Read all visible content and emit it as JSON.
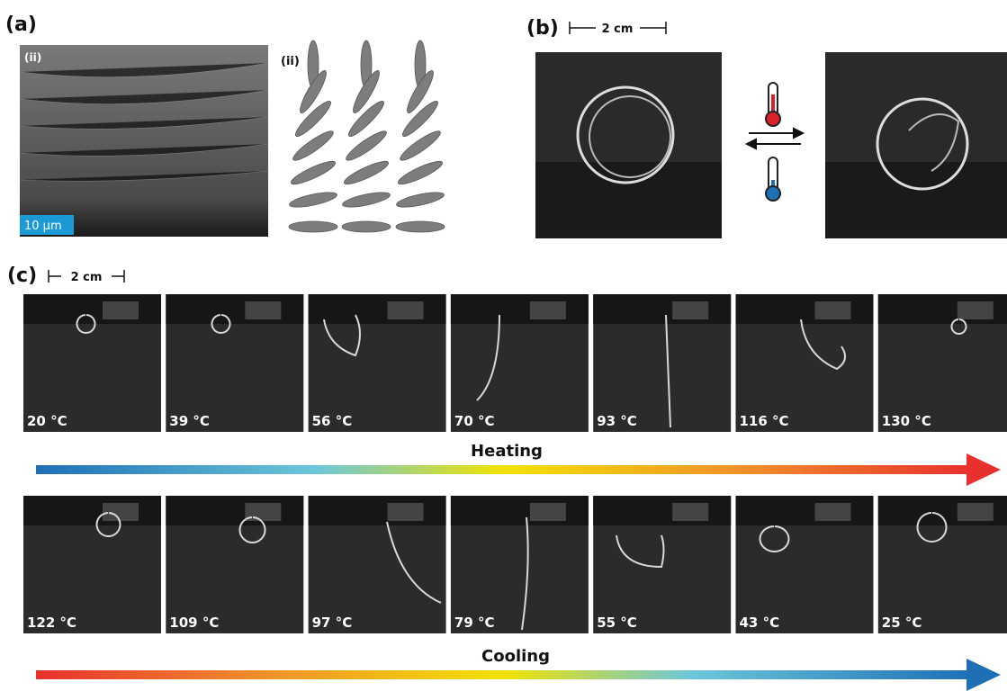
{
  "panel_a": {
    "label": "(a)",
    "sem_label": "(ii)",
    "scale_bar": "10 μm",
    "schematic_label": "(ii)"
  },
  "panel_b": {
    "label": "(b)",
    "scale_bar": "2 cm"
  },
  "panel_c": {
    "label": "(c)",
    "scale_bar": "2 cm",
    "heating": {
      "label": "Heating",
      "frames": [
        "20 °C",
        "39 °C",
        "56 °C",
        "70 °C",
        "93 °C",
        "116 °C",
        "130 °C"
      ]
    },
    "cooling": {
      "label": "Cooling",
      "frames": [
        "122 °C",
        "109 °C",
        "97 °C",
        "79 °C",
        "55 °C",
        "43 °C",
        "25 °C"
      ]
    }
  }
}
